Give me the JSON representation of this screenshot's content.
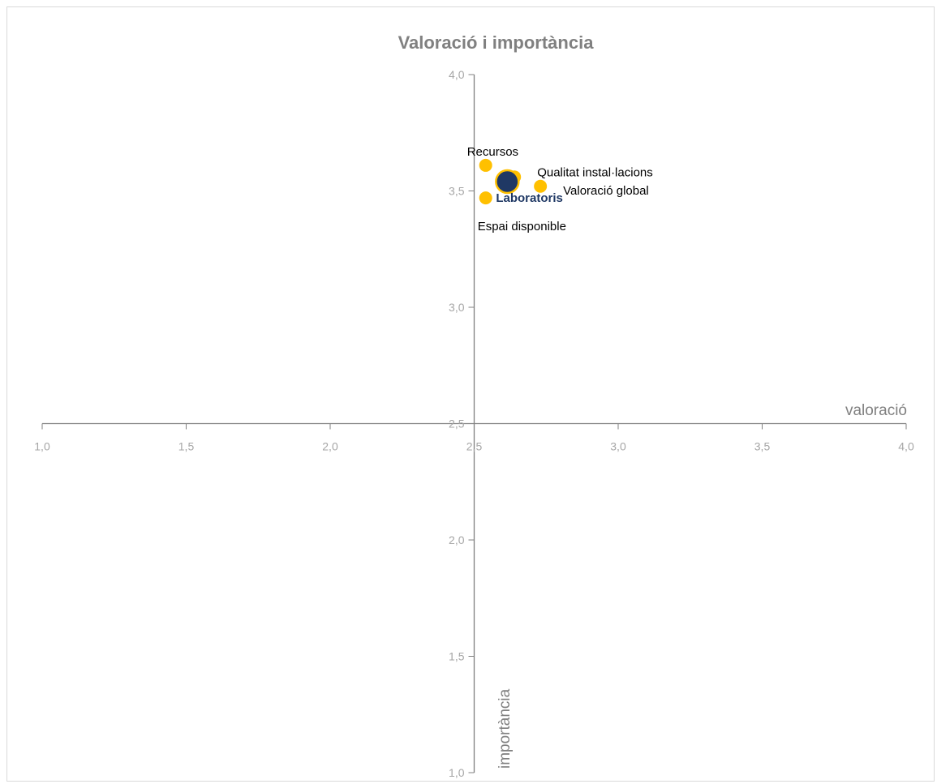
{
  "chart_data": {
    "type": "scatter",
    "title": "Valoració i importància",
    "xlabel": "valoració",
    "ylabel": "importància",
    "xlim": [
      1.0,
      4.0
    ],
    "ylim": [
      1.0,
      4.0
    ],
    "axis_cross": {
      "x": 2.5,
      "y": 2.5
    },
    "x_ticks": [
      1.0,
      1.5,
      2.0,
      2.5,
      3.0,
      3.5,
      4.0
    ],
    "y_ticks": [
      1.0,
      1.5,
      2.0,
      2.5,
      3.0,
      3.5,
      4.0
    ],
    "x_tick_labels": [
      "1,0",
      "1,5",
      "2,0",
      "2,5",
      "3,0",
      "3,5",
      "4,0"
    ],
    "y_tick_labels": [
      "1,0",
      "1,5",
      "2,0",
      "2,5",
      "3,0",
      "3,5",
      "4,0"
    ],
    "grid": false,
    "points": [
      {
        "label": "Recursos",
        "x": 2.54,
        "y": 3.61
      },
      {
        "label": "Qualitat instal·lacions",
        "x": 2.64,
        "y": 3.56
      },
      {
        "label": "Valoració global",
        "x": 2.73,
        "y": 3.52
      },
      {
        "label": "Espai disponible",
        "x": 2.54,
        "y": 3.47
      }
    ],
    "group_point": {
      "label": "Laboratoris",
      "x": 2.615,
      "y": 3.54
    },
    "colors": {
      "points": "#ffc000",
      "group": "#1f3864",
      "group_outline": "#ffc000",
      "axis": "#808080"
    }
  }
}
